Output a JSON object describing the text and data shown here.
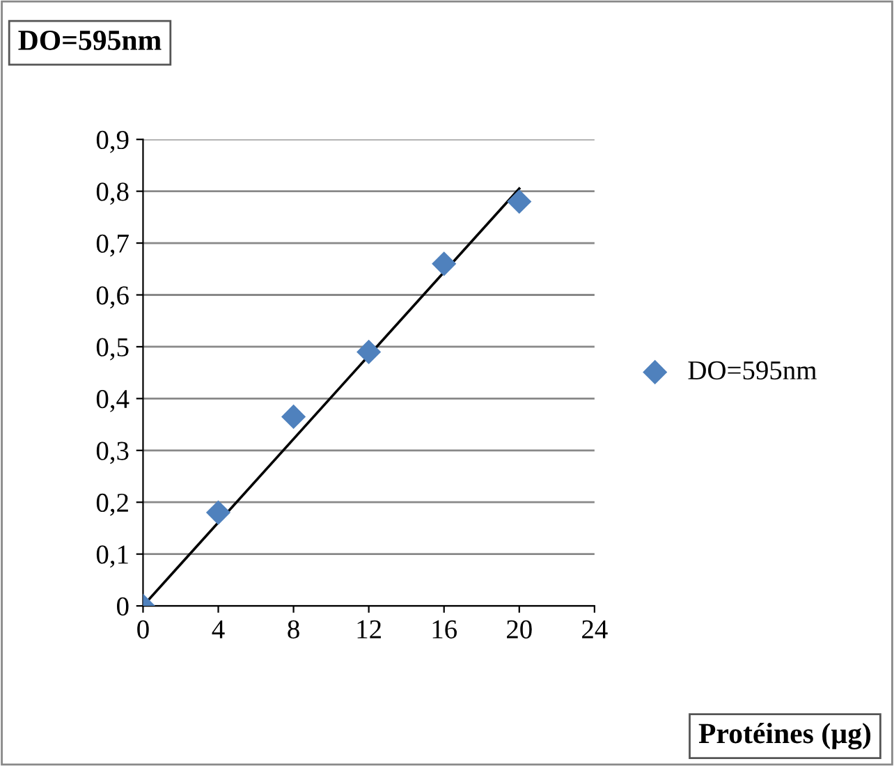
{
  "chart_data": {
    "type": "scatter",
    "ylabel": "DO=595nm",
    "xlabel": "Protéines (µg)",
    "xlim": [
      0,
      24
    ],
    "xticks": [
      0,
      4,
      8,
      12,
      16,
      20,
      24
    ],
    "ylim": [
      0,
      0.9
    ],
    "yticks": [
      {
        "value": 0,
        "label": "0"
      },
      {
        "value": 0.1,
        "label": "0,1"
      },
      {
        "value": 0.2,
        "label": "0,2"
      },
      {
        "value": 0.3,
        "label": "0,3"
      },
      {
        "value": 0.4,
        "label": "0,4"
      },
      {
        "value": 0.5,
        "label": "0,5"
      },
      {
        "value": 0.6,
        "label": "0,6"
      },
      {
        "value": 0.7,
        "label": "0,7"
      },
      {
        "value": 0.8,
        "label": "0,8"
      },
      {
        "value": 0.9,
        "label": "0,9"
      }
    ],
    "grid": "y",
    "legend": "right",
    "series": [
      {
        "name": "DO=595nm",
        "marker": "diamond",
        "color": "#4f81bd",
        "x": [
          0,
          4,
          8,
          12,
          16,
          20
        ],
        "values": [
          0,
          0.18,
          0.365,
          0.49,
          0.66,
          0.78
        ]
      },
      {
        "type": "line",
        "color": "#000000",
        "x": [
          0,
          20
        ],
        "values": [
          0,
          0.805
        ]
      }
    ]
  }
}
